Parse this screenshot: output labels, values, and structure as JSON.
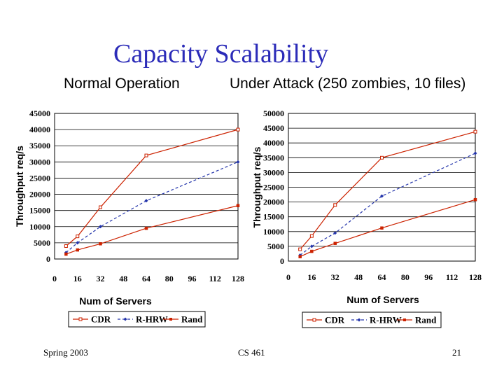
{
  "slide": {
    "title": "Capacity Scalability",
    "subtitle_left": "Normal Operation",
    "subtitle_right": "Under Attack (250 zombies, 10 files)",
    "footer_left": "Spring 2003",
    "footer_center": "CS 461",
    "footer_right": "21"
  },
  "chart_data": [
    {
      "type": "line",
      "xlabel": "Num of Servers",
      "ylabel": "Throughput req/s",
      "xticks": [
        0,
        16,
        32,
        48,
        64,
        80,
        96,
        112,
        128
      ],
      "yticks": [
        0,
        5000,
        10000,
        15000,
        20000,
        25000,
        30000,
        35000,
        40000,
        45000
      ],
      "xlim": [
        0,
        128
      ],
      "ylim": [
        0,
        45000
      ],
      "grid": "horizontal",
      "legend": "bottom",
      "series": [
        {
          "name": "CDR",
          "color": "#cc2200",
          "dash": "",
          "marker": "open-square",
          "x": [
            8,
            16,
            32,
            64,
            128
          ],
          "y": [
            4000,
            7000,
            16000,
            32000,
            40000
          ]
        },
        {
          "name": "R-HRW",
          "color": "#2233aa",
          "dash": "4,3",
          "marker": "diamond",
          "x": [
            8,
            16,
            32,
            64,
            128
          ],
          "y": [
            2000,
            5000,
            10000,
            18000,
            30000
          ]
        },
        {
          "name": "Rand",
          "color": "#cc2200",
          "dash": "",
          "marker": "filled-square",
          "x": [
            8,
            16,
            32,
            64,
            128
          ],
          "y": [
            1500,
            2800,
            4700,
            9500,
            16500
          ]
        }
      ]
    },
    {
      "type": "line",
      "xlabel": "Num of Servers",
      "ylabel": "Throughput req/s",
      "xticks": [
        0,
        16,
        32,
        48,
        64,
        80,
        96,
        112,
        128
      ],
      "yticks": [
        0,
        5000,
        10000,
        15000,
        20000,
        25000,
        30000,
        35000,
        40000,
        45000,
        50000
      ],
      "xlim": [
        0,
        128
      ],
      "ylim": [
        0,
        50000
      ],
      "grid": "horizontal",
      "legend": "bottom",
      "series": [
        {
          "name": "CDR",
          "color": "#cc2200",
          "dash": "",
          "marker": "open-square",
          "x": [
            8,
            16,
            32,
            64,
            128
          ],
          "y": [
            4000,
            8500,
            19000,
            35000,
            43800
          ]
        },
        {
          "name": "R-HRW",
          "color": "#2233aa",
          "dash": "4,3",
          "marker": "diamond",
          "x": [
            8,
            16,
            32,
            64,
            128
          ],
          "y": [
            2000,
            5000,
            9500,
            22000,
            36500
          ]
        },
        {
          "name": "Rand",
          "color": "#cc2200",
          "dash": "",
          "marker": "filled-square",
          "x": [
            8,
            16,
            32,
            64,
            128
          ],
          "y": [
            1500,
            3300,
            6000,
            11200,
            20800
          ]
        }
      ]
    }
  ]
}
